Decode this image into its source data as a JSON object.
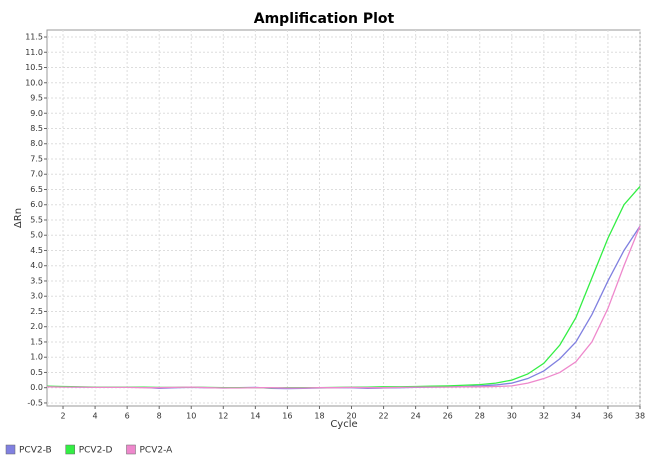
{
  "chart_data": {
    "type": "line",
    "title": "Amplification Plot",
    "x_label": "Cycle",
    "y_label": "ΔRn",
    "x": [
      1,
      2,
      3,
      4,
      5,
      6,
      7,
      8,
      9,
      10,
      11,
      12,
      13,
      14,
      15,
      16,
      17,
      18,
      19,
      20,
      21,
      22,
      23,
      24,
      25,
      26,
      27,
      28,
      29,
      30,
      31,
      32,
      33,
      34,
      35,
      36,
      37,
      38
    ],
    "series": [
      {
        "name": "PCV2-B",
        "color": "#8080e0",
        "values": [
          0.04,
          0.03,
          0.02,
          0.02,
          0.01,
          0.01,
          0.01,
          -0.02,
          0,
          0.01,
          0,
          -0.01,
          0,
          0.01,
          -0.02,
          -0.03,
          -0.02,
          -0.01,
          0,
          0,
          -0.02,
          -0.01,
          0,
          0.01,
          0.02,
          0.03,
          0.04,
          0.06,
          0.09,
          0.15,
          0.3,
          0.55,
          0.95,
          1.5,
          2.4,
          3.5,
          4.5,
          5.3
        ]
      },
      {
        "name": "PCV2-D",
        "color": "#33ee44",
        "values": [
          0.05,
          0.04,
          0.03,
          0.02,
          0.02,
          0.02,
          0.02,
          0.01,
          0.01,
          0.02,
          0.01,
          0,
          0,
          0,
          -0.01,
          0,
          0,
          0,
          0.01,
          0.02,
          0.02,
          0.03,
          0.03,
          0.04,
          0.05,
          0.06,
          0.08,
          0.1,
          0.15,
          0.25,
          0.45,
          0.8,
          1.4,
          2.3,
          3.6,
          4.9,
          6.0,
          6.6
        ]
      },
      {
        "name": "PCV2-A",
        "color": "#ee88cc",
        "values": [
          0.03,
          0.02,
          0.02,
          0.01,
          0.01,
          0.01,
          0,
          0,
          0.01,
          0.02,
          0,
          -0.01,
          -0.01,
          0,
          0,
          -0.01,
          -0.01,
          0,
          0,
          0.01,
          0,
          0,
          0.01,
          0.02,
          0.02,
          0.02,
          0.03,
          0.03,
          0.04,
          0.06,
          0.15,
          0.3,
          0.5,
          0.85,
          1.5,
          2.6,
          4.0,
          5.3
        ]
      }
    ],
    "xlim": [
      1,
      38
    ],
    "xticks": [
      2,
      4,
      6,
      8,
      10,
      12,
      14,
      16,
      18,
      20,
      22,
      24,
      26,
      28,
      30,
      32,
      34,
      36,
      38
    ],
    "ylim": [
      -0.6,
      11.73
    ],
    "yticks": [
      -0.5,
      {
        "value": 0,
        "label": "0.0"
      },
      0.5,
      {
        "value": 1,
        "label": "1.0"
      },
      1.5,
      {
        "value": 2,
        "label": "2.0"
      },
      2.5,
      {
        "value": 3,
        "label": "3.0"
      },
      3.5,
      {
        "value": 4,
        "label": "4.0"
      },
      4.5,
      {
        "value": 5,
        "label": "5.0"
      },
      5.5,
      {
        "value": 6,
        "label": "6.0"
      },
      6.5,
      {
        "value": 7,
        "label": "7.0"
      },
      7.5,
      {
        "value": 8,
        "label": "8.0"
      },
      8.5,
      {
        "value": 9,
        "label": "9.0"
      },
      9.5,
      {
        "value": 10,
        "label": "10.0"
      },
      10.5,
      {
        "value": 11,
        "label": "11.0"
      },
      11.5
    ],
    "grid": true
  }
}
